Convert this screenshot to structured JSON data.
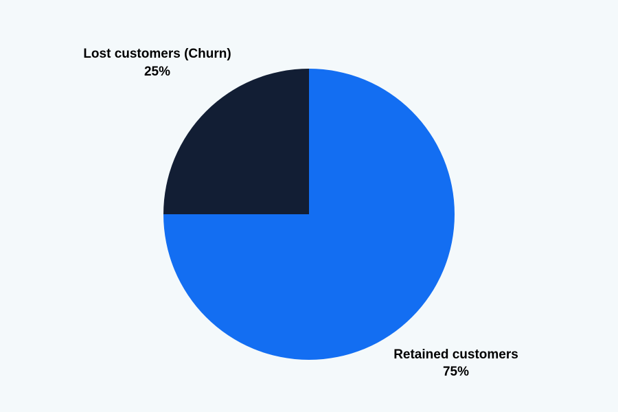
{
  "chart_data": {
    "type": "pie",
    "title": "",
    "start_angle_deg": 0,
    "direction": "clockwise",
    "slices": [
      {
        "label": "Retained customers",
        "value": 75,
        "value_label": "75%",
        "color": "#136ef2"
      },
      {
        "label": "Lost customers (Churn)",
        "value": 25,
        "value_label": "25%",
        "color": "#121e34"
      }
    ]
  },
  "background": "#f4f9fb"
}
